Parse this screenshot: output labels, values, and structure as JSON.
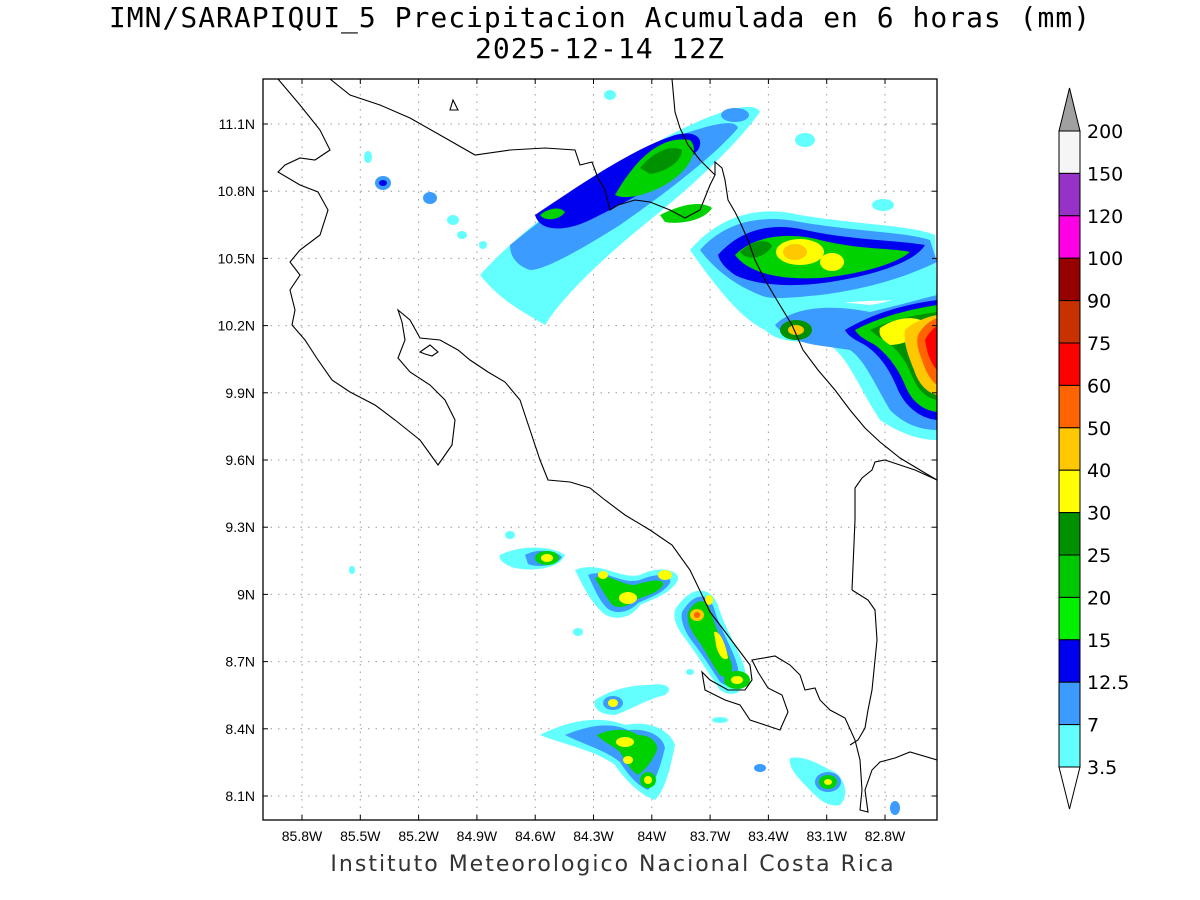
{
  "title": {
    "line1": "IMN/SARAPIQUI_5 Precipitacion Acumulada en 6 horas (mm)",
    "line2": "2025-12-14 12Z"
  },
  "footer": "Instituto Meteorologico Nacional Costa Rica",
  "axes": {
    "lat_ticks": [
      "11.1N",
      "10.8N",
      "10.5N",
      "10.2N",
      "9.9N",
      "9.6N",
      "9.3N",
      "9N",
      "8.7N",
      "8.4N",
      "8.1N"
    ],
    "lon_ticks": [
      "85.8W",
      "85.5W",
      "85.2W",
      "84.9W",
      "84.6W",
      "84.3W",
      "84W",
      "83.7W",
      "83.4W",
      "83.1W",
      "82.8W"
    ]
  },
  "colorbar": {
    "labels": [
      "3.5",
      "7",
      "12.5",
      "15",
      "20",
      "25",
      "30",
      "40",
      "50",
      "60",
      "75",
      "90",
      "100",
      "120",
      "150",
      "200"
    ],
    "colors": [
      "#ffffff",
      "#63ffff",
      "#3c9bff",
      "#0000f0",
      "#00f000",
      "#00c800",
      "#009100",
      "#ffff00",
      "#ffc800",
      "#ff6400",
      "#ff0000",
      "#c83200",
      "#960000",
      "#ff00e6",
      "#9632c8",
      "#f5f5f5",
      "#a0a0a0"
    ]
  },
  "map_data": {
    "region": "Costa Rica",
    "lon_range": [
      -86.1,
      -83.1
    ],
    "lat_range": [
      8.0,
      11.3
    ],
    "variable": "Precipitacion Acumulada en 6 horas (mm)",
    "grid": true
  }
}
